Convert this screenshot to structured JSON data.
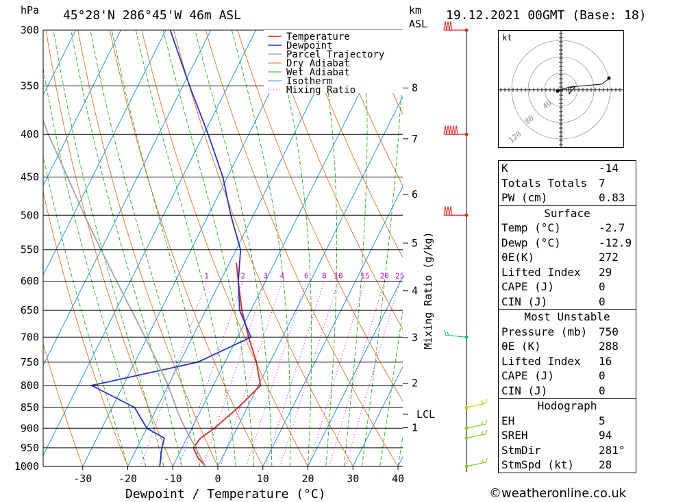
{
  "header": {
    "pressure_unit": "hPa",
    "location": "45°28'N  286°45'W  46m  ASL",
    "height_unit_km": "km",
    "height_unit_asl": "ASL",
    "datetime": "19.12.2021  00GMT  (Base: 18)"
  },
  "chart_data": {
    "type": "line",
    "title": "",
    "xlabel": "Dewpoint / Temperature (°C)",
    "ylabel": "hPa",
    "right_axis_label": "Mixing Ratio (g/kg)",
    "pressure_ticks": [
      300,
      350,
      400,
      450,
      500,
      550,
      600,
      650,
      700,
      750,
      800,
      850,
      900,
      950,
      1000
    ],
    "temperature_ticks": [
      -30,
      -20,
      -10,
      0,
      10,
      20,
      30,
      40
    ],
    "xlim": [
      -40,
      40
    ],
    "ylim": [
      1000,
      300
    ],
    "height_ticks_km": [
      {
        "label": "8",
        "p": 352
      },
      {
        "label": "7",
        "p": 405
      },
      {
        "label": "6",
        "p": 472
      },
      {
        "label": "5",
        "p": 540
      },
      {
        "label": "4",
        "p": 616
      },
      {
        "label": "3",
        "p": 701
      },
      {
        "label": "2",
        "p": 795
      },
      {
        "label": "LCL",
        "p": 866
      },
      {
        "label": "1",
        "p": 899
      }
    ],
    "mixing_ratio_labels": [
      "1",
      "2",
      "3",
      "4",
      "6",
      "8",
      "10",
      "15",
      "20",
      "25"
    ],
    "legend": [
      "Temperature",
      "Dewpoint",
      "Parcel Trajectory",
      "Dry Adiabat",
      "Wet Adiabat",
      "Isotherm",
      "Mixing Ratio"
    ],
    "legend_position": "top-right",
    "colors": {
      "temperature": "#dd2222",
      "dewpoint": "#2233cc",
      "parcel": "#aaaaaa",
      "dry_adiabat": "#e07020",
      "wet_adiabat": "#22aa22",
      "isotherm": "#2299dd",
      "mixing_ratio": "#cc00cc"
    },
    "series": [
      {
        "name": "Temperature",
        "points": [
          {
            "p": 1000,
            "t": -2.7
          },
          {
            "p": 975,
            "t": -5.5
          },
          {
            "p": 950,
            "t": -7.5
          },
          {
            "p": 925,
            "t": -7.0
          },
          {
            "p": 900,
            "t": -5.0
          },
          {
            "p": 850,
            "t": -2.0
          },
          {
            "p": 800,
            "t": 0.5
          },
          {
            "p": 750,
            "t": -3.0
          },
          {
            "p": 700,
            "t": -7.5
          },
          {
            "p": 650,
            "t": -12.0
          },
          {
            "p": 600,
            "t": -16.0
          },
          {
            "p": 570,
            "t": -18.5
          }
        ]
      },
      {
        "name": "Dewpoint",
        "points": [
          {
            "p": 1000,
            "t": -12.9
          },
          {
            "p": 950,
            "t": -14.5
          },
          {
            "p": 925,
            "t": -15.0
          },
          {
            "p": 900,
            "t": -20.0
          },
          {
            "p": 850,
            "t": -25.0
          },
          {
            "p": 800,
            "t": -37.0
          },
          {
            "p": 750,
            "t": -16.0
          },
          {
            "p": 700,
            "t": -7.0
          },
          {
            "p": 650,
            "t": -12.5
          },
          {
            "p": 600,
            "t": -16.0
          },
          {
            "p": 550,
            "t": -19.0
          },
          {
            "p": 500,
            "t": -25.0
          },
          {
            "p": 450,
            "t": -31.0
          },
          {
            "p": 400,
            "t": -39.0
          },
          {
            "p": 350,
            "t": -48.5
          },
          {
            "p": 300,
            "t": -59.0
          }
        ]
      },
      {
        "name": "Parcel Trajectory",
        "points": [
          {
            "p": 1000,
            "t": -2.7
          },
          {
            "p": 950,
            "t": -7.0
          },
          {
            "p": 900,
            "t": -11.5
          },
          {
            "p": 866,
            "t": -14.5
          },
          {
            "p": 800,
            "t": -20.0
          },
          {
            "p": 750,
            "t": -25.0
          },
          {
            "p": 700,
            "t": -30.5
          },
          {
            "p": 650,
            "t": -36.5
          },
          {
            "p": 600,
            "t": -43.0
          },
          {
            "p": 550,
            "t": -50.0
          },
          {
            "p": 500,
            "t": -57.5
          },
          {
            "p": 450,
            "t": -65.5
          },
          {
            "p": 400,
            "t": -74.5
          },
          {
            "p": 350,
            "t": -84.0
          }
        ]
      }
    ],
    "wind_barbs": [
      {
        "p": 300,
        "color": "#ee2222"
      },
      {
        "p": 400,
        "color": "#ee2222"
      },
      {
        "p": 500,
        "color": "#ee2222"
      },
      {
        "p": 700,
        "color": "#22bb88"
      },
      {
        "p": 850,
        "color": "#cccc00"
      },
      {
        "p": 900,
        "color": "#88cc22"
      },
      {
        "p": 925,
        "color": "#88cc22"
      },
      {
        "p": 1000,
        "color": "#88cc22"
      }
    ]
  },
  "hodograph": {
    "unit": "kt",
    "ring_labels": [
      "40",
      "80",
      "120"
    ]
  },
  "indices": {
    "rows": [
      {
        "label": "K",
        "value": "-14"
      },
      {
        "label": "Totals Totals",
        "value": "7"
      },
      {
        "label": "PW (cm)",
        "value": "0.83"
      }
    ]
  },
  "surface": {
    "title": "Surface",
    "rows": [
      {
        "label": "Temp (°C)",
        "value": "-2.7"
      },
      {
        "label": "Dewp (°C)",
        "value": "-12.9"
      },
      {
        "label": "θE(K)",
        "value": "272"
      },
      {
        "label": "Lifted Index",
        "value": "29"
      },
      {
        "label": "CAPE (J)",
        "value": "0"
      },
      {
        "label": "CIN (J)",
        "value": "0"
      }
    ]
  },
  "most_unstable": {
    "title": "Most Unstable",
    "rows": [
      {
        "label": "Pressure (mb)",
        "value": "750"
      },
      {
        "label": "θE (K)",
        "value": "288"
      },
      {
        "label": "Lifted Index",
        "value": "16"
      },
      {
        "label": "CAPE (J)",
        "value": "0"
      },
      {
        "label": "CIN (J)",
        "value": "0"
      }
    ]
  },
  "hodograph_stats": {
    "title": "Hodograph",
    "rows": [
      {
        "label": "EH",
        "value": "5"
      },
      {
        "label": "SREH",
        "value": "94"
      },
      {
        "label": "StmDir",
        "value": "281°"
      },
      {
        "label": "StmSpd (kt)",
        "value": "28"
      }
    ]
  },
  "credit": "©weatheronline.co.uk"
}
